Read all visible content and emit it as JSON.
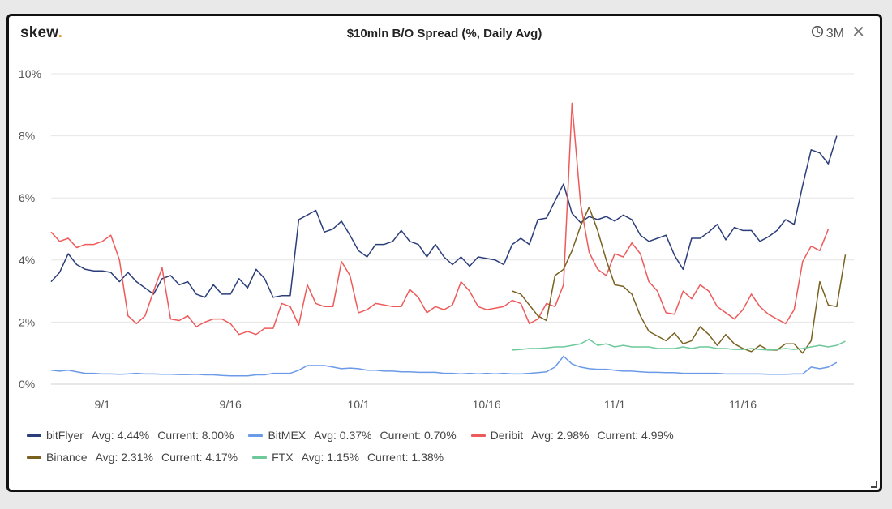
{
  "header": {
    "brand": "skew",
    "brand_dot": ".",
    "title": "$10mln B/O Spread (%, Daily Avg)",
    "range_label": "3M",
    "range_icon": "clock-icon",
    "close_icon": "close-icon",
    "close_glyph": "✕"
  },
  "chart_data": {
    "type": "line",
    "title": "$10mln B/O Spread (%, Daily Avg)",
    "xlabel": "",
    "ylabel": "",
    "x_unit": "day index from first data point (Aug 26)",
    "x_ticks": [
      {
        "x": 6,
        "label": "9/1"
      },
      {
        "x": 21,
        "label": "9/16"
      },
      {
        "x": 36,
        "label": "10/1"
      },
      {
        "x": 51,
        "label": "10/16"
      },
      {
        "x": 66,
        "label": "11/1"
      },
      {
        "x": 81,
        "label": "11/16"
      }
    ],
    "y_ticks": [
      {
        "value": 0,
        "label": "0%"
      },
      {
        "value": 2,
        "label": "2%"
      },
      {
        "value": 4,
        "label": "4%"
      },
      {
        "value": 6,
        "label": "6%"
      },
      {
        "value": 8,
        "label": "8%"
      },
      {
        "value": 10,
        "label": "10%"
      }
    ],
    "xlim": [
      0,
      94
    ],
    "ylim": [
      0,
      10
    ],
    "grid": true,
    "legend_position": "bottom",
    "series": [
      {
        "name": "bitFlyer",
        "color": "#2c3e7a",
        "avg": "4.44%",
        "current": "8.00%",
        "x_start": 0,
        "values": [
          3.3,
          3.6,
          4.2,
          3.85,
          3.7,
          3.65,
          3.65,
          3.6,
          3.3,
          3.6,
          3.3,
          3.1,
          2.9,
          3.4,
          3.5,
          3.2,
          3.3,
          2.9,
          2.8,
          3.2,
          2.9,
          2.9,
          3.4,
          3.1,
          3.7,
          3.4,
          2.8,
          2.85,
          2.85,
          5.3,
          5.45,
          5.6,
          4.9,
          5.0,
          5.25,
          4.8,
          4.3,
          4.1,
          4.5,
          4.5,
          4.6,
          4.95,
          4.6,
          4.5,
          4.1,
          4.5,
          4.1,
          3.85,
          4.1,
          3.8,
          4.1,
          4.05,
          4.0,
          3.85,
          4.5,
          4.7,
          4.5,
          5.3,
          5.35,
          5.9,
          6.45,
          5.5,
          5.2,
          5.4,
          5.3,
          5.4,
          5.25,
          5.45,
          5.3,
          4.8,
          4.6,
          4.7,
          4.8,
          4.15,
          3.7,
          4.7,
          4.7,
          4.9,
          5.15,
          4.65,
          5.05,
          4.95,
          4.95,
          4.6,
          4.75,
          4.95,
          5.3,
          5.15,
          6.4,
          7.55,
          7.45,
          7.1,
          8.0
        ]
      },
      {
        "name": "BitMEX",
        "color": "#6b9ae8",
        "avg": "0.37%",
        "current": "0.70%",
        "x_start": 0,
        "values": [
          0.45,
          0.42,
          0.45,
          0.4,
          0.35,
          0.35,
          0.33,
          0.33,
          0.32,
          0.33,
          0.35,
          0.33,
          0.33,
          0.32,
          0.32,
          0.31,
          0.31,
          0.32,
          0.3,
          0.3,
          0.28,
          0.27,
          0.27,
          0.27,
          0.3,
          0.3,
          0.35,
          0.35,
          0.35,
          0.45,
          0.6,
          0.6,
          0.6,
          0.55,
          0.5,
          0.52,
          0.5,
          0.45,
          0.45,
          0.42,
          0.42,
          0.4,
          0.4,
          0.38,
          0.38,
          0.38,
          0.35,
          0.35,
          0.33,
          0.35,
          0.33,
          0.35,
          0.33,
          0.35,
          0.33,
          0.33,
          0.35,
          0.37,
          0.4,
          0.55,
          0.9,
          0.65,
          0.55,
          0.5,
          0.48,
          0.48,
          0.45,
          0.42,
          0.42,
          0.4,
          0.38,
          0.38,
          0.37,
          0.37,
          0.35,
          0.35,
          0.35,
          0.35,
          0.35,
          0.33,
          0.33,
          0.33,
          0.33,
          0.33,
          0.32,
          0.32,
          0.32,
          0.33,
          0.33,
          0.55,
          0.5,
          0.55,
          0.7
        ]
      },
      {
        "name": "Deribit",
        "color": "#ee5a5a",
        "avg": "2.98%",
        "current": "4.99%",
        "x_start": 0,
        "values": [
          4.9,
          4.6,
          4.7,
          4.4,
          4.5,
          4.5,
          4.6,
          4.8,
          4.0,
          2.2,
          1.95,
          2.2,
          3.0,
          3.75,
          2.1,
          2.05,
          2.2,
          1.85,
          2.0,
          2.1,
          2.1,
          1.95,
          1.6,
          1.7,
          1.6,
          1.8,
          1.8,
          2.6,
          2.5,
          1.9,
          3.2,
          2.6,
          2.5,
          2.5,
          3.95,
          3.5,
          2.3,
          2.4,
          2.6,
          2.55,
          2.5,
          2.5,
          3.05,
          2.8,
          2.3,
          2.5,
          2.4,
          2.55,
          3.3,
          3.0,
          2.5,
          2.4,
          2.45,
          2.5,
          2.7,
          2.6,
          1.95,
          2.1,
          2.6,
          2.5,
          3.2,
          9.05,
          5.8,
          4.25,
          3.7,
          3.5,
          4.2,
          4.1,
          4.55,
          4.2,
          3.3,
          3.0,
          2.3,
          2.25,
          3.0,
          2.75,
          3.2,
          3.0,
          2.5,
          2.3,
          2.1,
          2.4,
          2.9,
          2.5,
          2.25,
          2.1,
          1.95,
          2.4,
          3.95,
          4.45,
          4.3,
          4.99
        ]
      },
      {
        "name": "Binance",
        "color": "#7a6120",
        "avg": "2.31%",
        "current": "4.17%",
        "x_start": 54,
        "values": [
          3.0,
          2.9,
          2.55,
          2.2,
          2.05,
          3.5,
          3.7,
          4.3,
          5.1,
          5.7,
          4.95,
          4.0,
          3.2,
          3.15,
          2.9,
          2.2,
          1.7,
          1.55,
          1.4,
          1.65,
          1.3,
          1.4,
          1.85,
          1.6,
          1.25,
          1.6,
          1.3,
          1.15,
          1.05,
          1.25,
          1.1,
          1.1,
          1.3,
          1.3,
          1.0,
          1.4,
          3.3,
          2.55,
          2.5,
          4.17
        ]
      },
      {
        "name": "FTX",
        "color": "#6cc99a",
        "avg": "1.15%",
        "current": "1.38%",
        "x_start": 54,
        "values": [
          1.1,
          1.12,
          1.15,
          1.15,
          1.17,
          1.2,
          1.2,
          1.25,
          1.3,
          1.45,
          1.25,
          1.3,
          1.2,
          1.25,
          1.2,
          1.2,
          1.2,
          1.15,
          1.15,
          1.15,
          1.2,
          1.15,
          1.2,
          1.2,
          1.15,
          1.15,
          1.12,
          1.12,
          1.15,
          1.12,
          1.1,
          1.12,
          1.15,
          1.12,
          1.15,
          1.2,
          1.25,
          1.2,
          1.25,
          1.38
        ]
      }
    ]
  },
  "legend": {
    "avg_label": "Avg:",
    "current_label": "Current:"
  }
}
